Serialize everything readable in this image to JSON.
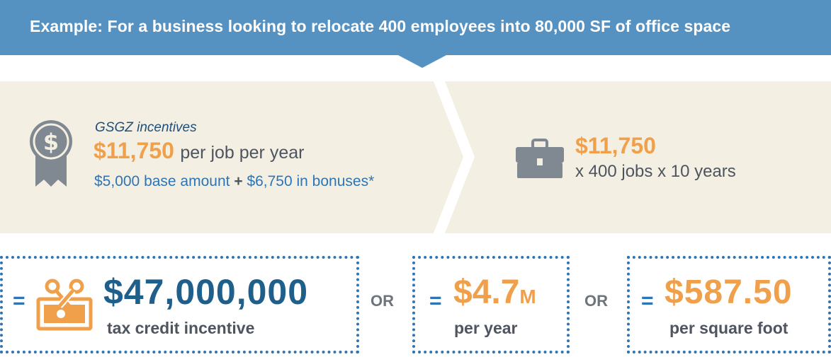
{
  "banner": {
    "text": "Example: For a business looking to relocate 400 employees into 80,000 SF of office space"
  },
  "incentive": {
    "title": "GSGZ incentives",
    "amount": "$11,750",
    "per_job_text": "per job per year",
    "base": "$5,000 base amount",
    "plus": "+",
    "bonuses": "$6,750 in bonuses*"
  },
  "calculation": {
    "amount": "$11,750",
    "detail": "x 400 jobs x 10 years"
  },
  "results": {
    "equals_sign": "=",
    "or_label": "OR",
    "total": {
      "value": "$47,000,000",
      "caption": "tax credit incentive"
    },
    "annual": {
      "value": "$4.7",
      "unit": "M",
      "caption": "per year"
    },
    "per_sf": {
      "value": "$587.50",
      "caption": "per square foot"
    }
  },
  "colors": {
    "banner_blue": "#5592c1",
    "beige": "#f4efe3",
    "orange": "#f0a04b",
    "dark_blue": "#1f5f8b",
    "mid_blue": "#2e75b6",
    "gray": "#4d5560"
  },
  "icons": [
    "award-ribbon-icon",
    "briefcase-icon",
    "scissors-coupon-icon"
  ]
}
